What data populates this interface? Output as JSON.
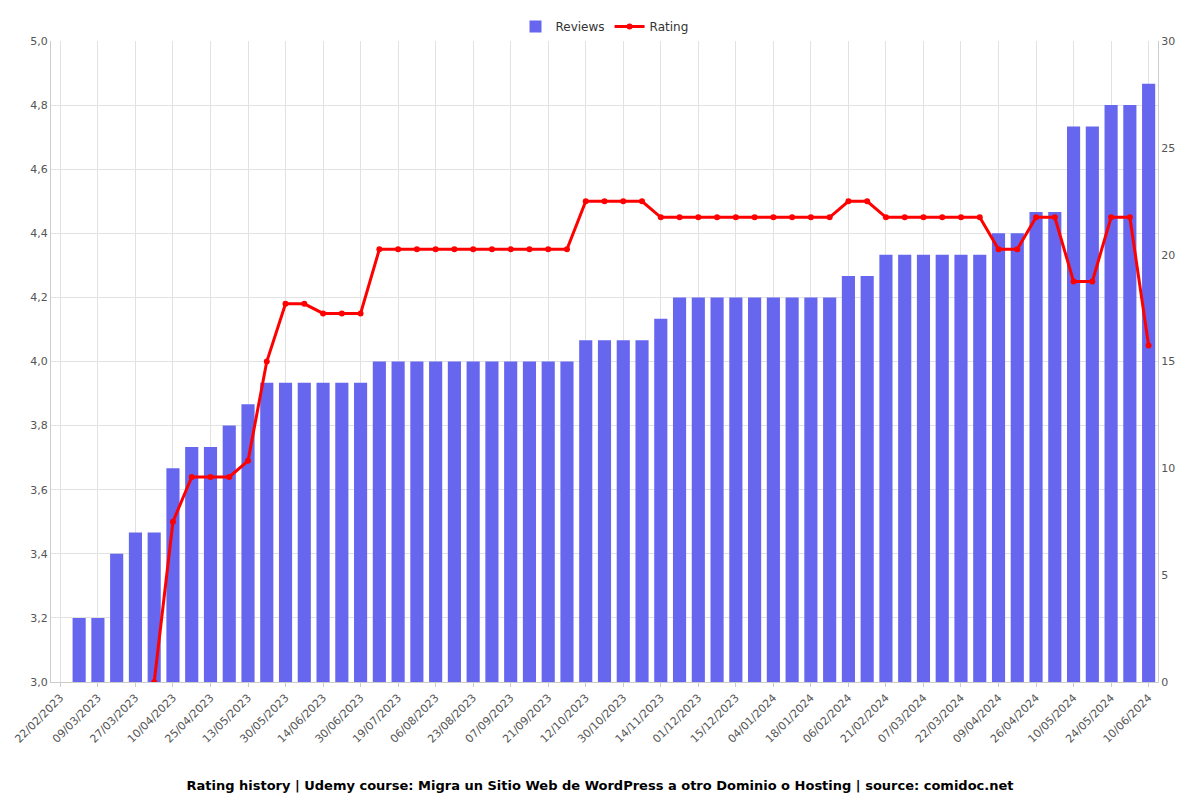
{
  "chart_data": {
    "type": "bar",
    "title": "Rating history | Udemy course: Migra un Sitio Web de WordPress a otro Dominio o Hosting | source: comidoc.net",
    "categories": [
      "22/02/2023",
      null,
      "09/03/2023",
      null,
      "27/03/2023",
      null,
      "10/04/2023",
      null,
      "25/04/2023",
      null,
      "13/05/2023",
      null,
      "30/05/2023",
      null,
      "14/06/2023",
      null,
      "30/06/2023",
      null,
      "19/07/2023",
      null,
      "06/08/2023",
      null,
      "23/08/2023",
      null,
      "07/09/2023",
      null,
      "21/09/2023",
      null,
      "12/10/2023",
      null,
      "30/10/2023",
      null,
      "14/11/2023",
      null,
      "01/12/2023",
      null,
      "15/12/2023",
      null,
      "04/01/2024",
      null,
      "18/01/2024",
      null,
      "06/02/2024",
      null,
      "21/02/2024",
      null,
      "07/03/2024",
      null,
      "22/03/2024",
      null,
      "09/04/2024",
      null,
      "26/04/2024",
      null,
      "10/05/2024",
      null,
      "24/05/2024",
      null,
      "10/06/2024"
    ],
    "series": [
      {
        "name": "Rating",
        "type": "line",
        "color": "#ff0000",
        "marker": "circle",
        "line_style": "solid",
        "values": [
          null,
          null,
          null,
          null,
          null,
          3.0,
          3.5,
          3.64,
          3.64,
          3.64,
          3.69,
          4.0,
          4.18,
          4.18,
          4.15,
          4.15,
          4.15,
          4.35,
          4.35,
          4.35,
          4.35,
          4.35,
          4.35,
          4.35,
          4.35,
          4.35,
          4.35,
          4.35,
          4.5,
          4.5,
          4.5,
          4.5,
          4.45,
          4.45,
          4.45,
          4.45,
          4.45,
          4.45,
          4.45,
          4.45,
          4.45,
          4.45,
          4.5,
          4.5,
          4.45,
          4.45,
          4.45,
          4.45,
          4.45,
          4.45,
          4.35,
          4.35,
          4.45,
          4.45,
          4.25,
          4.25,
          4.45,
          4.45,
          4.05
        ]
      },
      {
        "name": "Reviews",
        "type": "bar",
        "color": "#6666ee",
        "axis": "y2",
        "values": [
          null,
          3,
          3,
          6,
          7,
          7,
          10,
          11,
          11,
          12,
          13,
          14,
          14,
          14,
          14,
          14,
          14,
          15,
          15,
          15,
          15,
          15,
          15,
          15,
          15,
          15,
          15,
          15,
          16,
          16,
          16,
          16,
          17,
          18,
          18,
          18,
          18,
          18,
          18,
          18,
          18,
          18,
          19,
          19,
          20,
          20,
          20,
          20,
          20,
          20,
          21,
          21,
          22,
          22,
          26,
          26,
          27,
          27,
          28
        ]
      }
    ],
    "ylim": [
      3,
      5
    ],
    "yticks": [
      {
        "value": 3,
        "label": "3,0"
      },
      {
        "value": 3.2,
        "label": "3,2"
      },
      {
        "value": 3.4,
        "label": "3,4"
      },
      {
        "value": 3.6,
        "label": "3,6"
      },
      {
        "value": 3.8,
        "label": "3,8"
      },
      {
        "value": 4,
        "label": "4,0"
      },
      {
        "value": 4.2,
        "label": "4,2"
      },
      {
        "value": 4.4,
        "label": "4,4"
      },
      {
        "value": 4.6,
        "label": "4,6"
      },
      {
        "value": 4.8,
        "label": "4,8"
      },
      {
        "value": 5,
        "label": "5,0"
      }
    ],
    "y2lim": [
      0,
      30
    ],
    "y2ticks": [
      0,
      5,
      10,
      15,
      20,
      25,
      30
    ],
    "grid": true,
    "legend": "top"
  }
}
